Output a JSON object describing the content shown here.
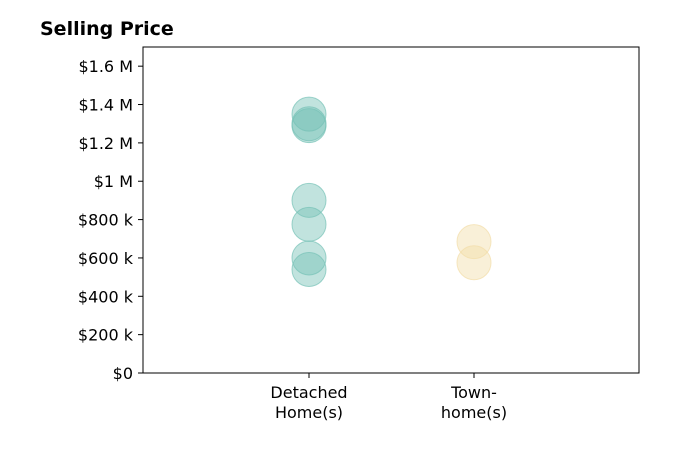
{
  "chart_data": {
    "type": "scatter",
    "title": "Selling Price",
    "xlabel": "",
    "ylabel": "",
    "categories": [
      [
        "Detached",
        "Home(s)"
      ],
      [
        "Town-",
        "home(s)"
      ]
    ],
    "series": [
      {
        "category_index": 0,
        "color": "#76c2b6",
        "values": [
          1350000,
          1300000,
          1290000,
          900000,
          775000,
          600000,
          540000
        ]
      },
      {
        "category_index": 1,
        "color": "#f2dda8",
        "values": [
          685000,
          575000
        ]
      }
    ],
    "ylim": [
      0,
      1700000
    ],
    "yticks": [
      {
        "value": 0,
        "label": "$0"
      },
      {
        "value": 200000,
        "label": "$200 k"
      },
      {
        "value": 400000,
        "label": "$400 k"
      },
      {
        "value": 600000,
        "label": "$600 k"
      },
      {
        "value": 800000,
        "label": "$800 k"
      },
      {
        "value": 1000000,
        "label": "$1 M"
      },
      {
        "value": 1200000,
        "label": "$1.2 M"
      },
      {
        "value": 1400000,
        "label": "$1.4 M"
      },
      {
        "value": 1600000,
        "label": "$1.6 M"
      }
    ],
    "grid": false,
    "legend": "none"
  }
}
